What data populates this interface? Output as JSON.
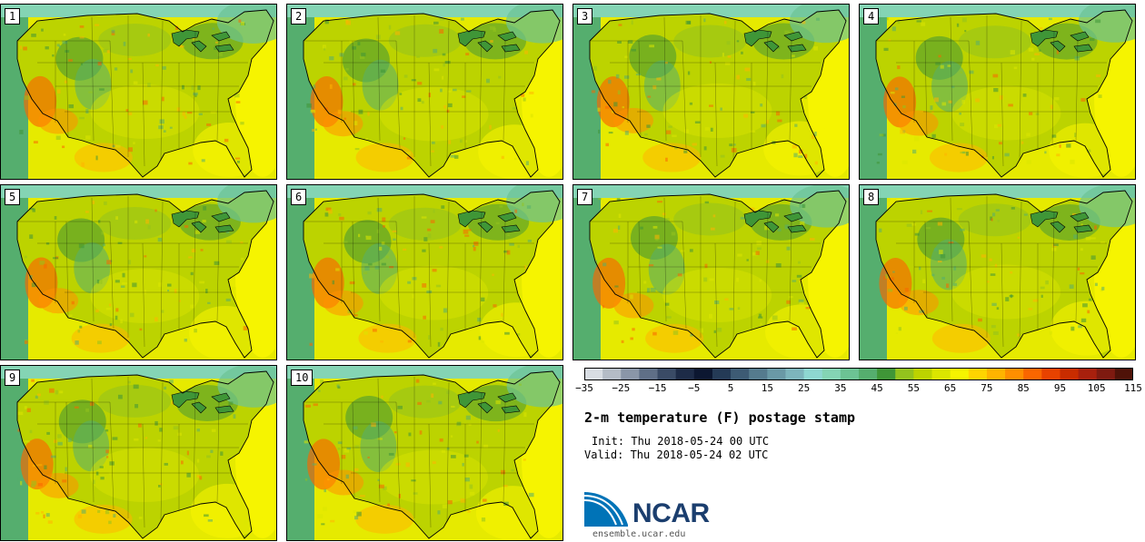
{
  "panels": [
    {
      "label": "1"
    },
    {
      "label": "2"
    },
    {
      "label": "3"
    },
    {
      "label": "4"
    },
    {
      "label": "5"
    },
    {
      "label": "6"
    },
    {
      "label": "7"
    },
    {
      "label": "8"
    },
    {
      "label": "9"
    },
    {
      "label": "10"
    }
  ],
  "colorbar": {
    "colors": [
      "#d8dde3",
      "#b4bcc6",
      "#8a96a8",
      "#5f6f87",
      "#3a4b66",
      "#1d2b47",
      "#0c1731",
      "#243a56",
      "#3d5b74",
      "#557b8e",
      "#6a99a6",
      "#7db5bc",
      "#8ed7d1",
      "#84d4b4",
      "#6cc394",
      "#55ae6e",
      "#3f9637",
      "#93c31d",
      "#bcd300",
      "#dbe500",
      "#f6f400",
      "#ffd400",
      "#ffb400",
      "#ff8f00",
      "#fa6600",
      "#e84200",
      "#c92c00",
      "#a8200d",
      "#7e1a10",
      "#4f1208"
    ],
    "ticks": [
      "−35",
      "−25",
      "−15",
      "−5",
      "5",
      "15",
      "25",
      "35",
      "45",
      "55",
      "65",
      "75",
      "85",
      "95",
      "105",
      "115"
    ]
  },
  "title": "2-m temperature (F) postage stamp",
  "init": "Init: Thu 2018-05-24 00 UTC",
  "valid": "Valid: Thu 2018-05-24 02 UTC",
  "logo": {
    "text": "NCAR",
    "colors": {
      "blue": "#0073b7",
      "navy": "#1b3e6e"
    }
  },
  "site": "ensemble.ucar.edu"
}
